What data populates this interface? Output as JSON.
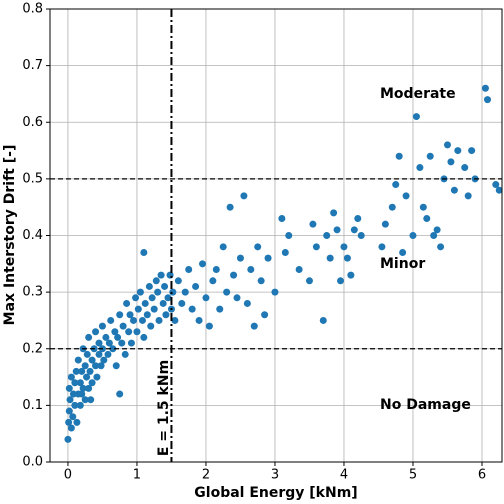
{
  "chart_data": {
    "type": "scatter",
    "x_label": "Global Energy [kNm]",
    "y_label": "Max Interstory Drift [-]",
    "color": "#1f77b4",
    "grid": true,
    "xlim": [
      -0.26,
      6.29
    ],
    "ylim": [
      0,
      0.8
    ],
    "xticks": [
      0,
      1,
      2,
      3,
      4,
      5,
      6
    ],
    "yticks": [
      {
        "value": 0,
        "label": "0.0"
      },
      0.1,
      0.2,
      0.3,
      0.4,
      0.5,
      0.6,
      0.7,
      0.8
    ],
    "reference_lines": {
      "y": [
        0.2,
        0.5
      ],
      "x": [
        1.5
      ]
    },
    "annotations": [
      "Moderate",
      "Minor",
      "No Damage",
      "E = 1.5 kNm"
    ],
    "x": [
      0.0,
      0.01,
      0.02,
      0.03,
      0.02,
      0.05,
      0.05,
      0.07,
      0.08,
      0.1,
      0.1,
      0.12,
      0.13,
      0.15,
      0.15,
      0.18,
      0.18,
      0.2,
      0.2,
      0.22,
      0.22,
      0.25,
      0.25,
      0.27,
      0.28,
      0.3,
      0.3,
      0.32,
      0.33,
      0.35,
      0.35,
      0.38,
      0.4,
      0.4,
      0.42,
      0.45,
      0.45,
      0.48,
      0.5,
      0.5,
      0.52,
      0.55,
      0.58,
      0.6,
      0.62,
      0.65,
      0.68,
      0.7,
      0.72,
      0.75,
      0.75,
      0.78,
      0.8,
      0.83,
      0.85,
      0.88,
      0.9,
      0.92,
      0.95,
      0.98,
      1.0,
      1.02,
      1.05,
      1.08,
      1.1,
      1.1,
      1.12,
      1.15,
      1.18,
      1.2,
      1.22,
      1.25,
      1.28,
      1.3,
      1.32,
      1.35,
      1.38,
      1.4,
      1.42,
      1.45,
      1.48,
      1.5,
      1.52,
      1.55,
      1.6,
      1.65,
      1.7,
      1.75,
      1.8,
      1.85,
      1.9,
      1.95,
      2.0,
      2.05,
      2.1,
      2.15,
      2.2,
      2.25,
      2.3,
      2.35,
      2.4,
      2.45,
      2.5,
      2.55,
      2.6,
      2.65,
      2.7,
      2.75,
      2.8,
      2.85,
      2.9,
      3.0,
      3.1,
      3.15,
      3.2,
      3.35,
      3.5,
      3.55,
      3.6,
      3.7,
      3.75,
      3.8,
      3.85,
      3.9,
      3.95,
      4.0,
      4.05,
      4.1,
      4.15,
      4.2,
      4.25,
      4.55,
      4.6,
      4.7,
      4.75,
      4.8,
      4.85,
      4.9,
      5.0,
      5.05,
      5.1,
      5.15,
      5.2,
      5.25,
      5.3,
      5.35,
      5.4,
      5.45,
      5.5,
      5.55,
      5.6,
      5.65,
      5.75,
      5.8,
      5.85,
      5.9,
      6.05,
      6.08,
      6.2,
      6.25
    ],
    "values": [
      0.04,
      0.07,
      0.09,
      0.11,
      0.13,
      0.06,
      0.15,
      0.08,
      0.12,
      0.1,
      0.14,
      0.16,
      0.07,
      0.12,
      0.18,
      0.1,
      0.14,
      0.16,
      0.12,
      0.2,
      0.13,
      0.11,
      0.17,
      0.15,
      0.19,
      0.13,
      0.22,
      0.16,
      0.11,
      0.18,
      0.14,
      0.2,
      0.17,
      0.23,
      0.15,
      0.19,
      0.21,
      0.17,
      0.24,
      0.2,
      0.18,
      0.22,
      0.19,
      0.21,
      0.25,
      0.2,
      0.23,
      0.17,
      0.22,
      0.12,
      0.26,
      0.21,
      0.24,
      0.19,
      0.28,
      0.23,
      0.26,
      0.21,
      0.25,
      0.29,
      0.23,
      0.27,
      0.3,
      0.25,
      0.37,
      0.22,
      0.28,
      0.26,
      0.31,
      0.24,
      0.29,
      0.27,
      0.32,
      0.3,
      0.25,
      0.33,
      0.28,
      0.31,
      0.26,
      0.29,
      0.33,
      0.27,
      0.3,
      0.25,
      0.32,
      0.28,
      0.3,
      0.34,
      0.27,
      0.31,
      0.25,
      0.35,
      0.29,
      0.24,
      0.32,
      0.34,
      0.27,
      0.38,
      0.3,
      0.45,
      0.33,
      0.29,
      0.36,
      0.47,
      0.28,
      0.34,
      0.24,
      0.38,
      0.32,
      0.26,
      0.36,
      0.3,
      0.43,
      0.37,
      0.4,
      0.34,
      0.32,
      0.42,
      0.38,
      0.25,
      0.4,
      0.36,
      0.44,
      0.41,
      0.32,
      0.38,
      0.36,
      0.33,
      0.41,
      0.43,
      0.4,
      0.38,
      0.42,
      0.45,
      0.49,
      0.54,
      0.37,
      0.47,
      0.4,
      0.61,
      0.52,
      0.45,
      0.43,
      0.54,
      0.4,
      0.41,
      0.38,
      0.5,
      0.56,
      0.53,
      0.48,
      0.55,
      0.52,
      0.47,
      0.55,
      0.5,
      0.66,
      0.64,
      0.49,
      0.48
    ]
  }
}
